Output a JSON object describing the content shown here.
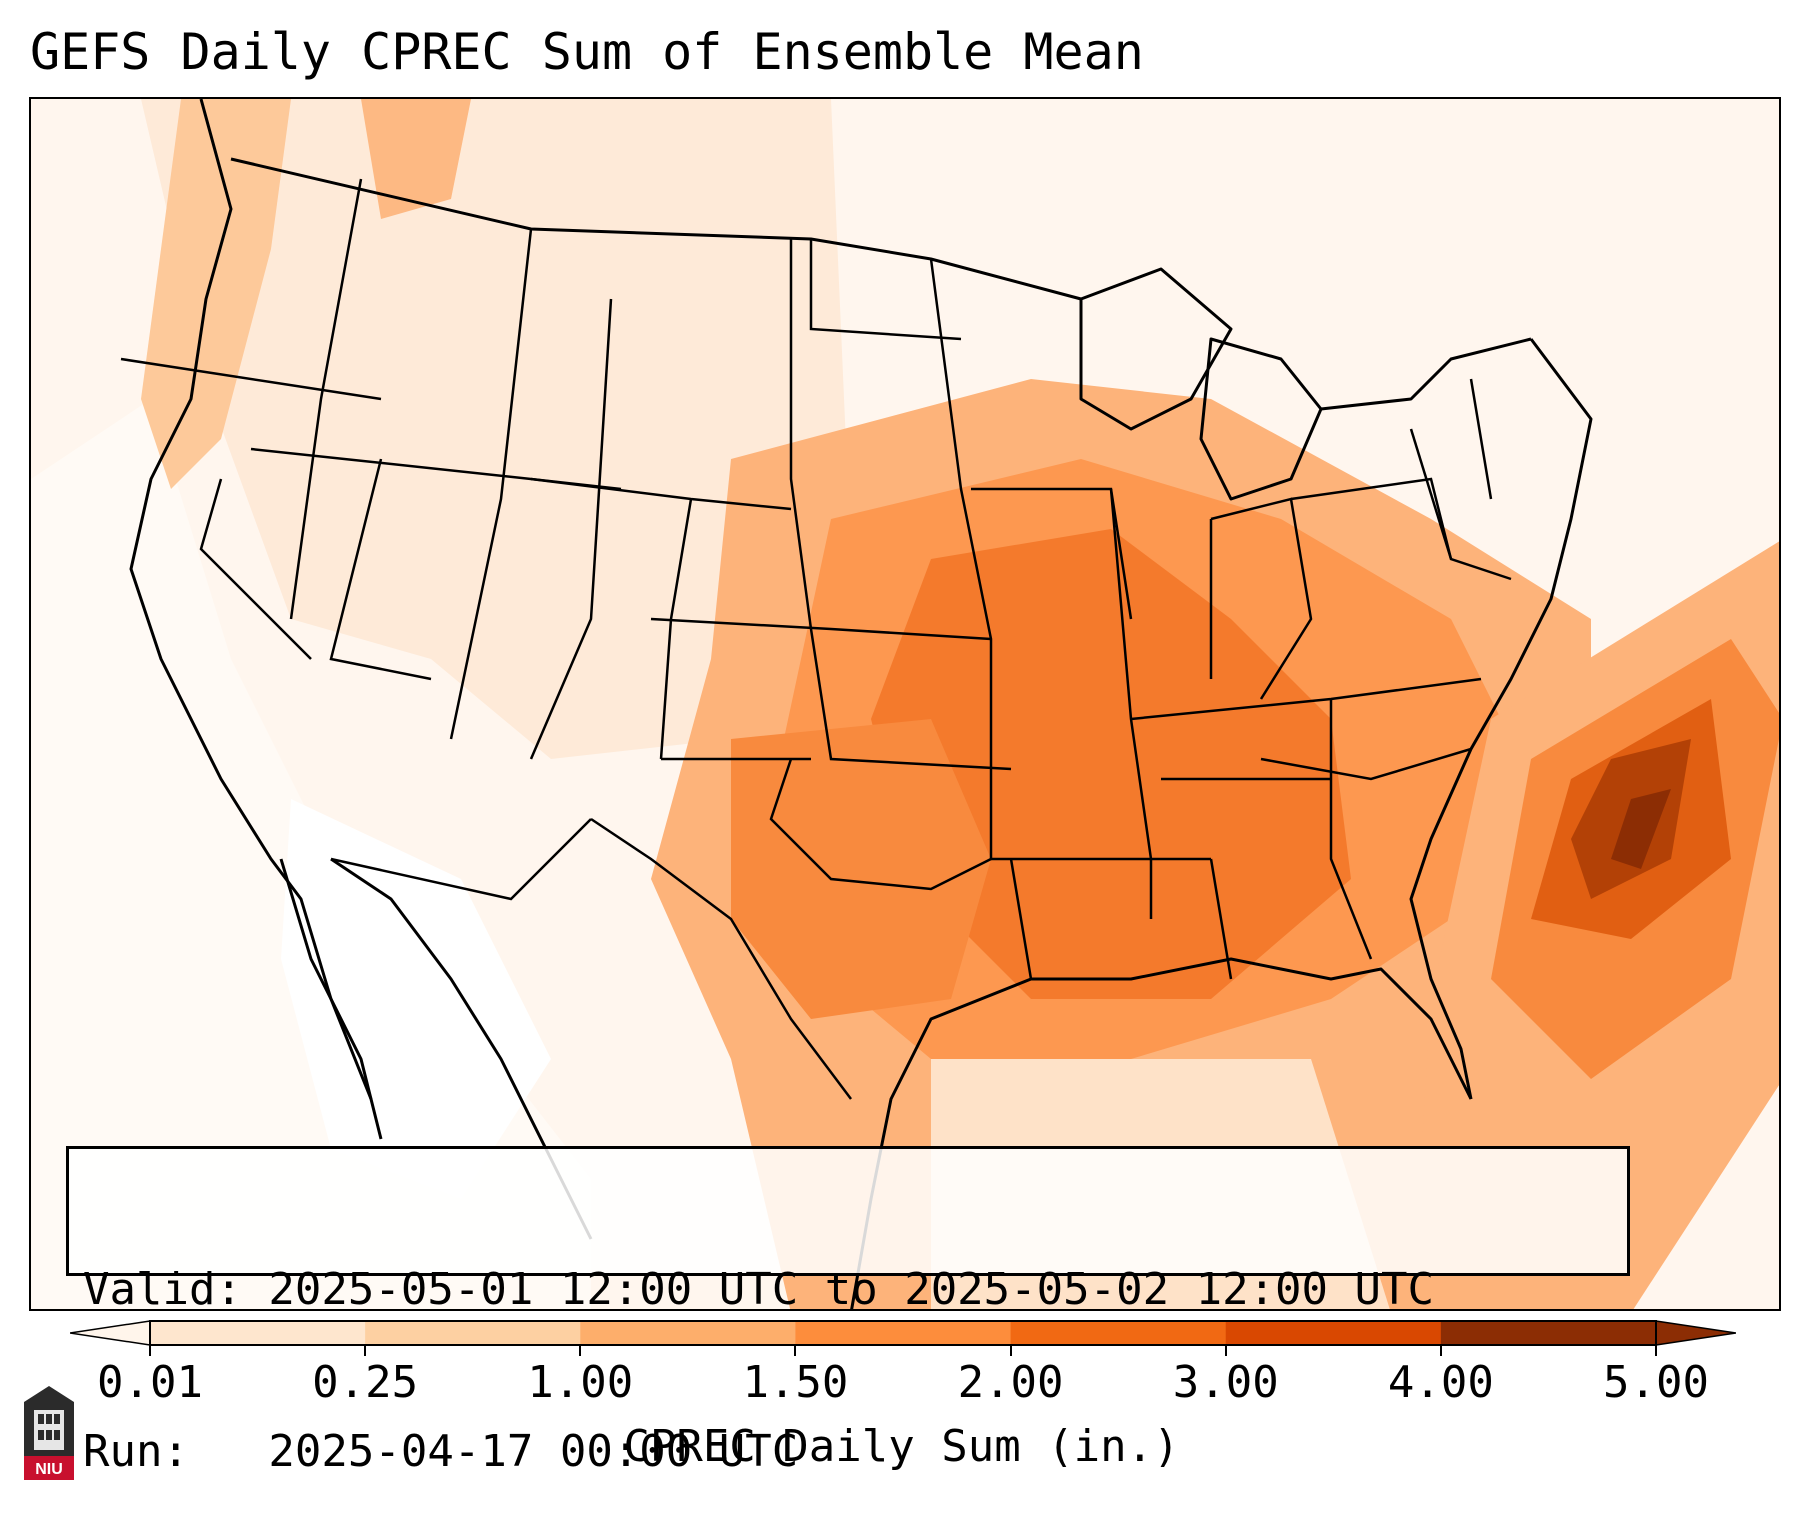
{
  "title": "GEFS Daily CPREC Sum of Ensemble Mean",
  "info": {
    "valid_line": "Valid: 2025-05-01 12:00 UTC to 2025-05-02 12:00 UTC",
    "run_line": "Run:   2025-04-17 00:00 UTC"
  },
  "colorbar": {
    "label": "CPREC Daily Sum (in.)",
    "ticks": [
      "0.01",
      "0.25",
      "1.00",
      "1.50",
      "2.00",
      "3.00",
      "4.00",
      "5.00"
    ],
    "colors": [
      "#fff5eb",
      "#fee6ce",
      "#fdd0a2",
      "#fdae6b",
      "#fd8d3c",
      "#f16913",
      "#d94801",
      "#8c2d04"
    ],
    "extend": "both"
  },
  "logo": {
    "text": "NIU",
    "icon": "university-building-icon"
  }
}
